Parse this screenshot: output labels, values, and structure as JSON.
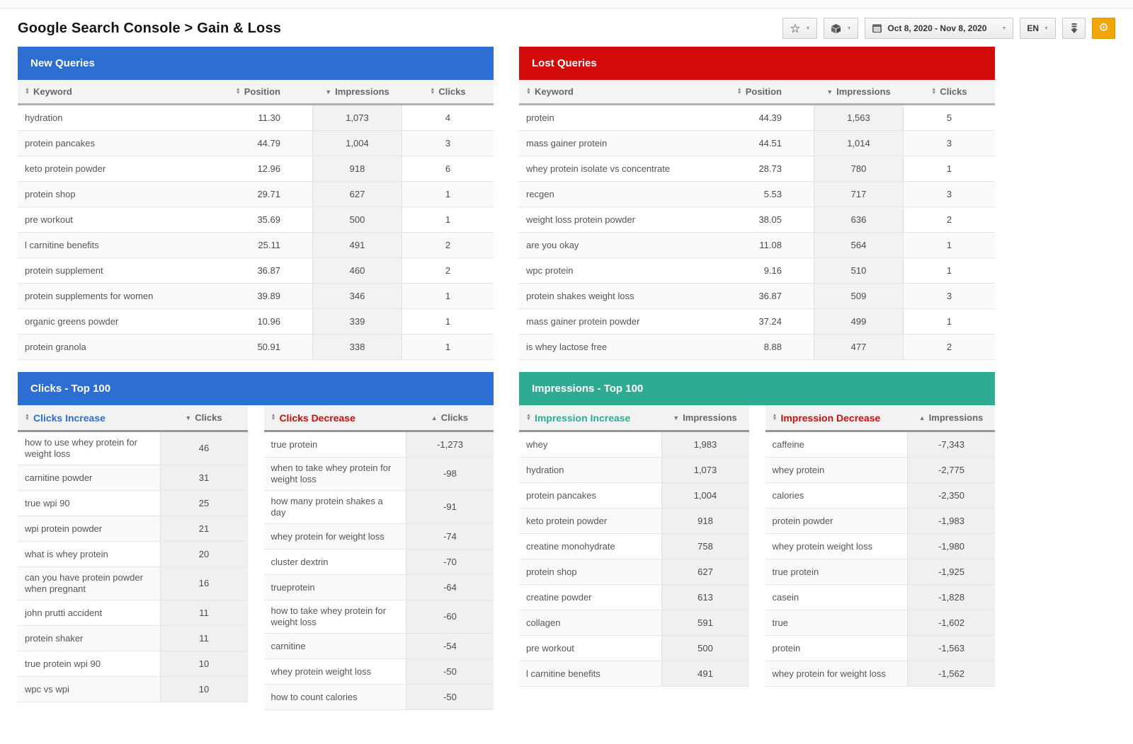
{
  "page": {
    "title": "Google Search Console > Gain & Loss"
  },
  "icons": {
    "sort_asc": "▲",
    "sort_desc": "▼",
    "caret": "▼",
    "star": "☆",
    "gear": "⚙"
  },
  "toolbar": {
    "date_range": "Oct 8, 2020 - Nov 8, 2020",
    "language": "EN"
  },
  "colors": {
    "accent_blue": "#2d6ed2",
    "accent_red": "#d30a0a",
    "accent_teal": "#2fab94",
    "gear_orange": "#f0a606"
  },
  "tables": {
    "new_queries": {
      "title": "New Queries",
      "columns": {
        "keyword": "Keyword",
        "position": "Position",
        "impressions": "Impressions",
        "clicks": "Clicks"
      },
      "rows": [
        {
          "keyword": "hydration",
          "position": "11.30",
          "impressions": "1,073",
          "clicks": "4"
        },
        {
          "keyword": "protein pancakes",
          "position": "44.79",
          "impressions": "1,004",
          "clicks": "3"
        },
        {
          "keyword": "keto protein powder",
          "position": "12.96",
          "impressions": "918",
          "clicks": "6"
        },
        {
          "keyword": "protein shop",
          "position": "29.71",
          "impressions": "627",
          "clicks": "1"
        },
        {
          "keyword": "pre workout",
          "position": "35.69",
          "impressions": "500",
          "clicks": "1"
        },
        {
          "keyword": "l carnitine benefits",
          "position": "25.11",
          "impressions": "491",
          "clicks": "2"
        },
        {
          "keyword": "protein supplement",
          "position": "36.87",
          "impressions": "460",
          "clicks": "2"
        },
        {
          "keyword": "protein supplements for women",
          "position": "39.89",
          "impressions": "346",
          "clicks": "1"
        },
        {
          "keyword": "organic greens powder",
          "position": "10.96",
          "impressions": "339",
          "clicks": "1"
        },
        {
          "keyword": "protein granola",
          "position": "50.91",
          "impressions": "338",
          "clicks": "1"
        }
      ]
    },
    "lost_queries": {
      "title": "Lost Queries",
      "columns": {
        "keyword": "Keyword",
        "position": "Position",
        "impressions": "Impressions",
        "clicks": "Clicks"
      },
      "rows": [
        {
          "keyword": "protein",
          "position": "44.39",
          "impressions": "1,563",
          "clicks": "5"
        },
        {
          "keyword": "mass gainer protein",
          "position": "44.51",
          "impressions": "1,014",
          "clicks": "3"
        },
        {
          "keyword": "whey protein isolate vs concentrate",
          "position": "28.73",
          "impressions": "780",
          "clicks": "1"
        },
        {
          "keyword": "recgen",
          "position": "5.53",
          "impressions": "717",
          "clicks": "3"
        },
        {
          "keyword": "weight loss protein powder",
          "position": "38.05",
          "impressions": "636",
          "clicks": "2"
        },
        {
          "keyword": "are you okay",
          "position": "11.08",
          "impressions": "564",
          "clicks": "1"
        },
        {
          "keyword": "wpc protein",
          "position": "9.16",
          "impressions": "510",
          "clicks": "1"
        },
        {
          "keyword": "protein shakes weight loss",
          "position": "36.87",
          "impressions": "509",
          "clicks": "3"
        },
        {
          "keyword": "mass gainer protein powder",
          "position": "37.24",
          "impressions": "499",
          "clicks": "1"
        },
        {
          "keyword": "is whey lactose free",
          "position": "8.88",
          "impressions": "477",
          "clicks": "2"
        }
      ]
    },
    "clicks_top100": {
      "title": "Clicks - Top 100",
      "increase": {
        "label": "Clicks Increase",
        "value_label": "Clicks",
        "rows": [
          {
            "keyword": "how to use whey protein for weight loss",
            "value": "46"
          },
          {
            "keyword": "carnitine powder",
            "value": "31"
          },
          {
            "keyword": "true wpi 90",
            "value": "25"
          },
          {
            "keyword": "wpi protein powder",
            "value": "21"
          },
          {
            "keyword": "what is whey protein",
            "value": "20"
          },
          {
            "keyword": "can you have protein powder when pregnant",
            "value": "16"
          },
          {
            "keyword": "john prutti accident",
            "value": "11"
          },
          {
            "keyword": "protein shaker",
            "value": "11"
          },
          {
            "keyword": "true protein wpi 90",
            "value": "10"
          },
          {
            "keyword": "wpc vs wpi",
            "value": "10"
          }
        ]
      },
      "decrease": {
        "label": "Clicks Decrease",
        "value_label": "Clicks",
        "rows": [
          {
            "keyword": "true protein",
            "value": "-1,273"
          },
          {
            "keyword": "when to take whey protein for weight loss",
            "value": "-98"
          },
          {
            "keyword": "how many protein shakes a day",
            "value": "-91"
          },
          {
            "keyword": "whey protein for weight loss",
            "value": "-74"
          },
          {
            "keyword": "cluster dextrin",
            "value": "-70"
          },
          {
            "keyword": "trueprotein",
            "value": "-64"
          },
          {
            "keyword": "how to take whey protein for weight loss",
            "value": "-60"
          },
          {
            "keyword": "carnitine",
            "value": "-54"
          },
          {
            "keyword": "whey protein weight loss",
            "value": "-50"
          },
          {
            "keyword": "how to count calories",
            "value": "-50"
          }
        ]
      }
    },
    "impressions_top100": {
      "title": "Impressions - Top 100",
      "increase": {
        "label": "Impression Increase",
        "value_label": "Impressions",
        "rows": [
          {
            "keyword": "whey",
            "value": "1,983"
          },
          {
            "keyword": "hydration",
            "value": "1,073"
          },
          {
            "keyword": "protein pancakes",
            "value": "1,004"
          },
          {
            "keyword": "keto protein powder",
            "value": "918"
          },
          {
            "keyword": "creatine monohydrate",
            "value": "758"
          },
          {
            "keyword": "protein shop",
            "value": "627"
          },
          {
            "keyword": "creatine powder",
            "value": "613"
          },
          {
            "keyword": "collagen",
            "value": "591"
          },
          {
            "keyword": "pre workout",
            "value": "500"
          },
          {
            "keyword": "l carnitine benefits",
            "value": "491"
          }
        ]
      },
      "decrease": {
        "label": "Impression Decrease",
        "value_label": "Impressions",
        "rows": [
          {
            "keyword": "caffeine",
            "value": "-7,343"
          },
          {
            "keyword": "whey protein",
            "value": "-2,775"
          },
          {
            "keyword": "calories",
            "value": "-2,350"
          },
          {
            "keyword": "protein powder",
            "value": "-1,983"
          },
          {
            "keyword": "whey protein weight loss",
            "value": "-1,980"
          },
          {
            "keyword": "true protein",
            "value": "-1,925"
          },
          {
            "keyword": "casein",
            "value": "-1,828"
          },
          {
            "keyword": "true",
            "value": "-1,602"
          },
          {
            "keyword": "protein",
            "value": "-1,563"
          },
          {
            "keyword": "whey protein for weight loss",
            "value": "-1,562"
          }
        ]
      }
    }
  }
}
